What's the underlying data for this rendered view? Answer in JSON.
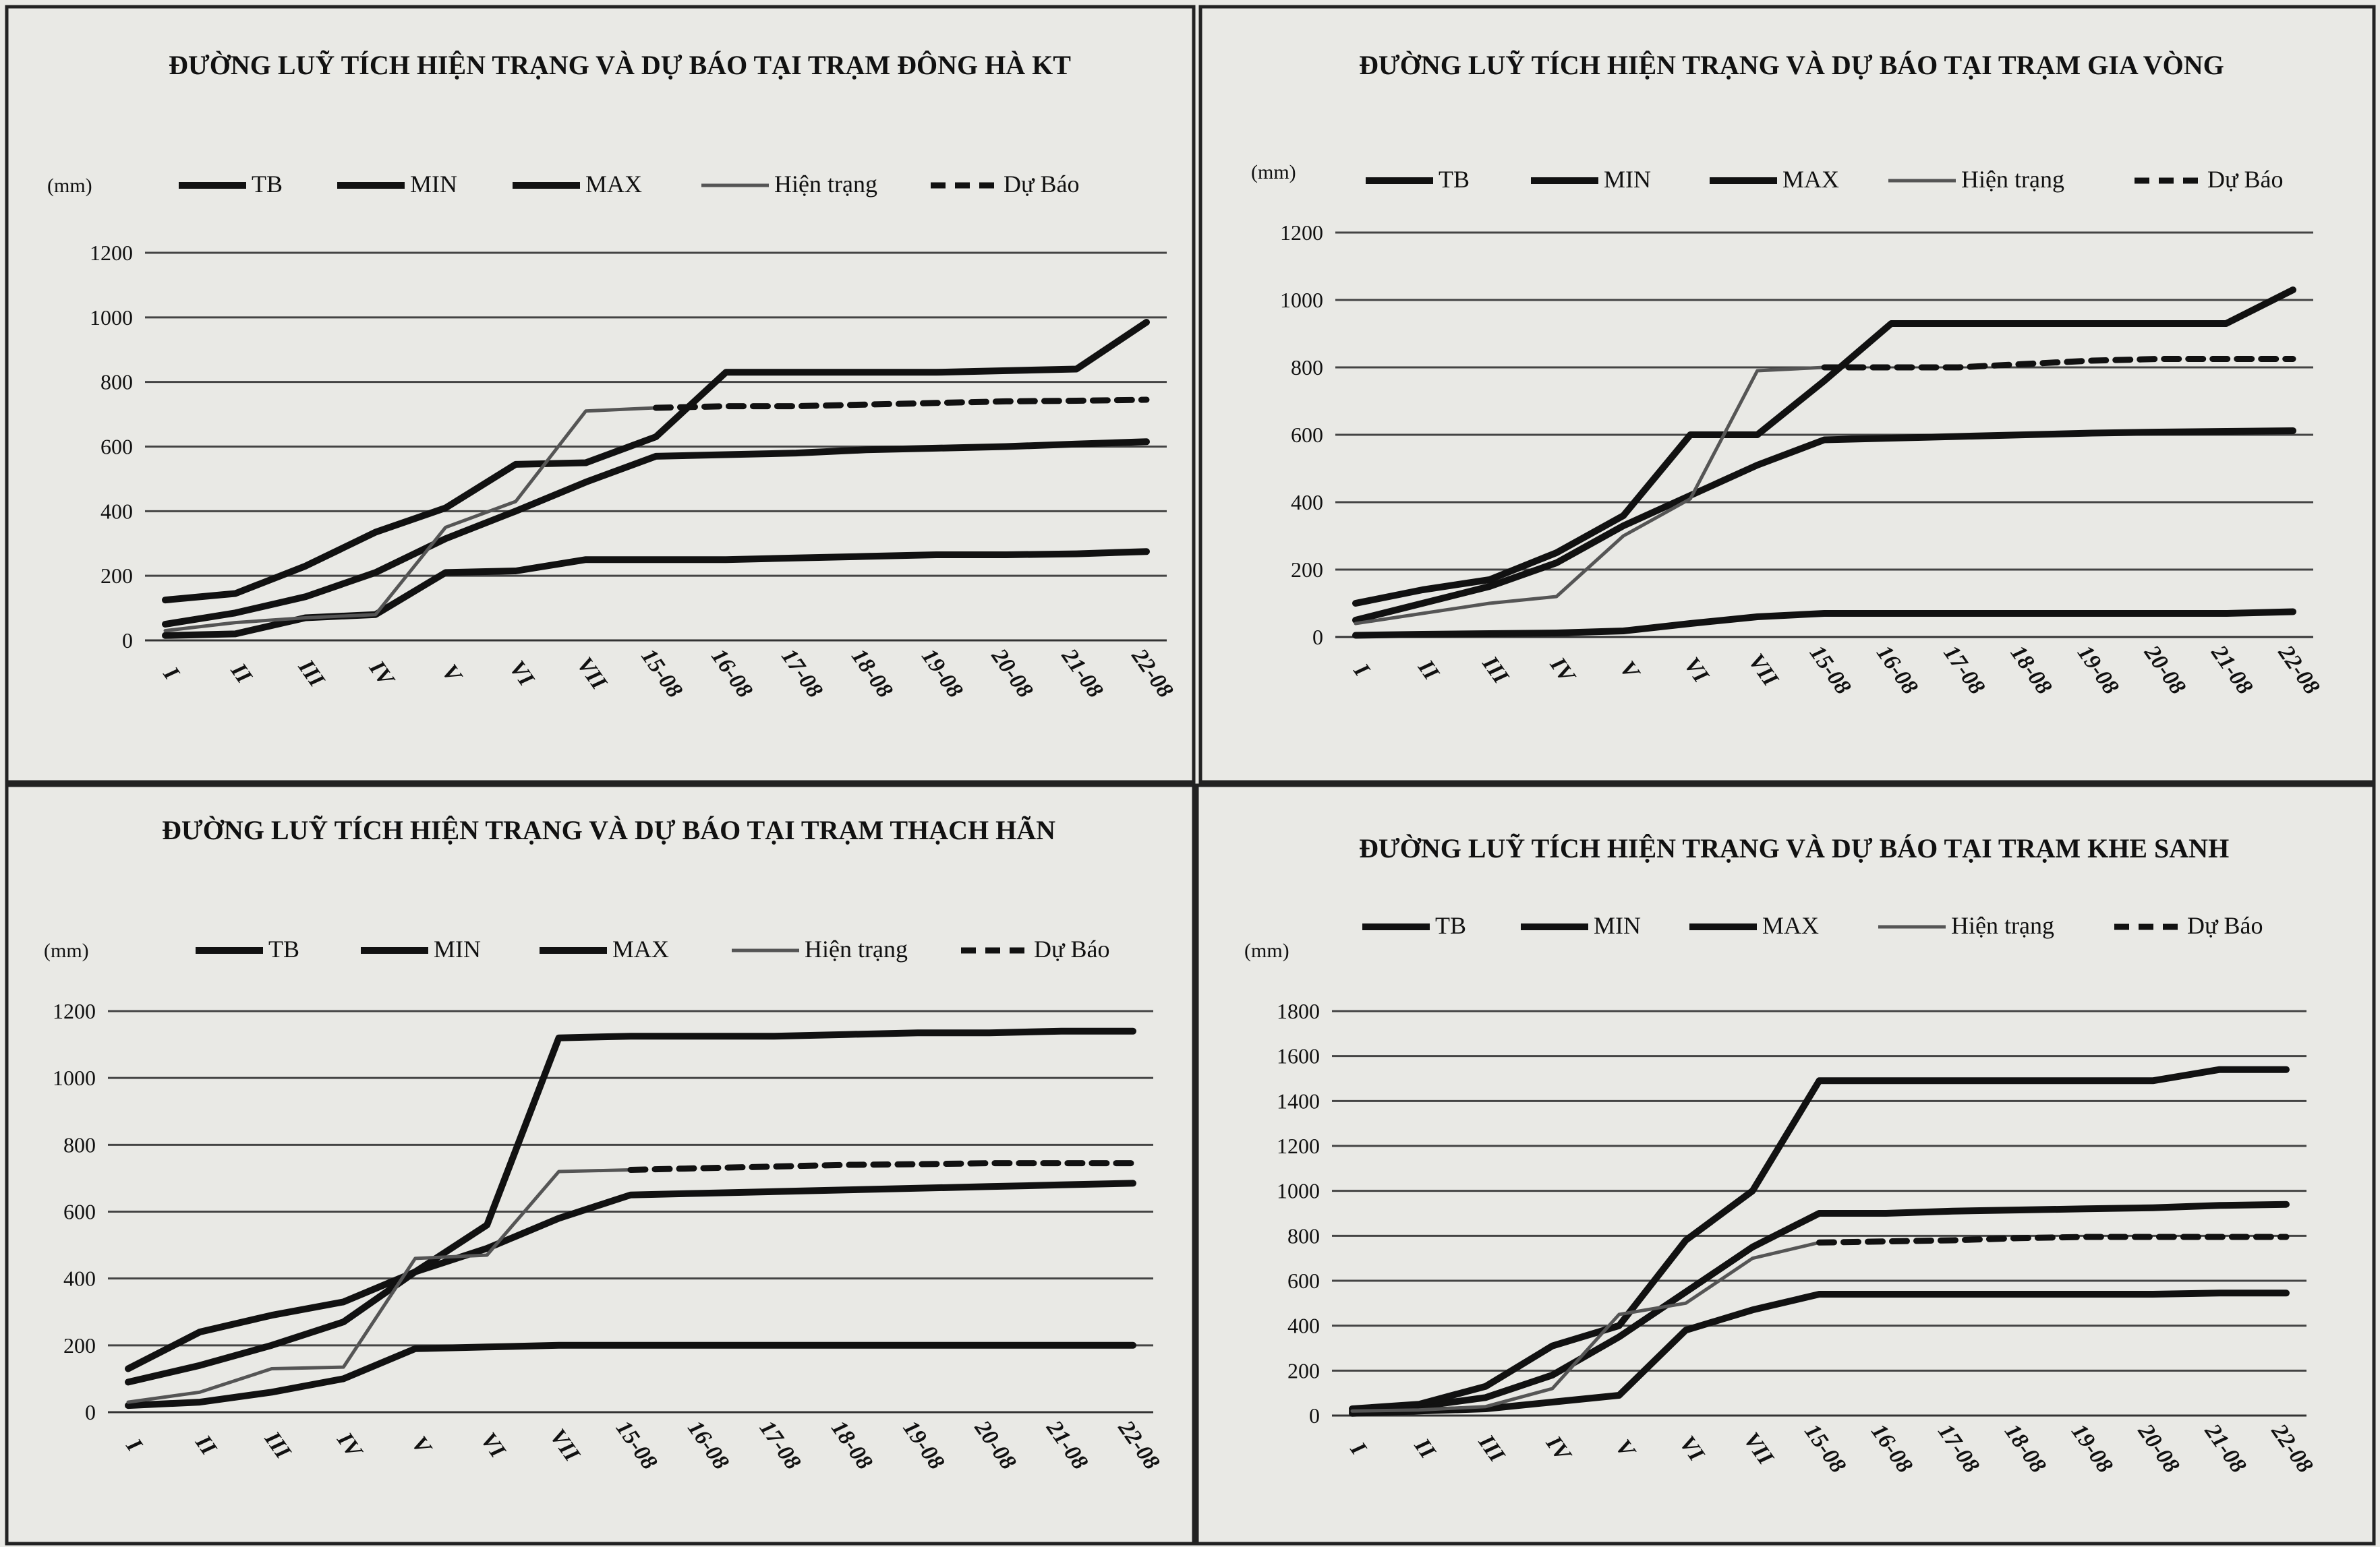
{
  "chart_data": [
    {
      "type": "line",
      "title": "ĐƯỜNG LUỸ TÍCH HIỆN TRẠNG VÀ DỰ BÁO TẠI TRẠM ĐÔNG HÀ KT",
      "ylabel": "(mm)",
      "ylim": [
        0,
        1200
      ],
      "yticks": [
        0,
        200,
        400,
        600,
        800,
        1000,
        1200
      ],
      "legend_position": "top",
      "grid": true,
      "categories": [
        "I",
        "II",
        "III",
        "IV",
        "V",
        "VI",
        "VII",
        "15-08",
        "16-08",
        "17-08",
        "18-08",
        "19-08",
        "20-08",
        "21-08",
        "22-08"
      ],
      "series": [
        {
          "name": "TB",
          "style": "thick",
          "values": [
            50,
            85,
            135,
            210,
            315,
            400,
            490,
            570,
            575,
            580,
            590,
            595,
            600,
            608,
            615
          ]
        },
        {
          "name": "MIN",
          "style": "thick",
          "values": [
            15,
            20,
            70,
            80,
            210,
            215,
            250,
            250,
            250,
            255,
            260,
            265,
            265,
            268,
            275
          ]
        },
        {
          "name": "MAX",
          "style": "thick",
          "values": [
            125,
            145,
            230,
            335,
            410,
            545,
            550,
            630,
            830,
            830,
            830,
            830,
            835,
            840,
            985
          ]
        },
        {
          "name": "Hiện trạng",
          "style": "thin",
          "values": [
            30,
            55,
            70,
            80,
            350,
            430,
            710,
            720,
            null,
            null,
            null,
            null,
            null,
            null,
            null
          ]
        },
        {
          "name": "Dự Báo",
          "style": "dashed",
          "values": [
            null,
            null,
            null,
            null,
            null,
            null,
            null,
            720,
            725,
            725,
            730,
            735,
            740,
            742,
            745
          ]
        }
      ]
    },
    {
      "type": "line",
      "title": "ĐƯỜNG LUỸ TÍCH HIỆN TRẠNG VÀ DỰ BÁO TẠI TRẠM GIA VÒNG",
      "ylabel": "(mm)",
      "ylim": [
        0,
        1200
      ],
      "yticks": [
        0,
        200,
        400,
        600,
        800,
        1000,
        1200
      ],
      "legend_position": "top",
      "grid": true,
      "categories": [
        "I",
        "II",
        "III",
        "IV",
        "V",
        "VI",
        "VII",
        "15-08",
        "16-08",
        "17-08",
        "18-08",
        "19-08",
        "20-08",
        "21-08",
        "22-08"
      ],
      "series": [
        {
          "name": "TB",
          "style": "thick",
          "values": [
            50,
            100,
            150,
            220,
            330,
            420,
            510,
            585,
            590,
            595,
            600,
            605,
            608,
            610,
            612
          ]
        },
        {
          "name": "MIN",
          "style": "thick",
          "values": [
            5,
            8,
            10,
            12,
            18,
            40,
            60,
            70,
            70,
            70,
            70,
            70,
            70,
            70,
            75
          ]
        },
        {
          "name": "MAX",
          "style": "thick",
          "values": [
            100,
            140,
            170,
            250,
            360,
            600,
            600,
            760,
            930,
            930,
            930,
            930,
            930,
            930,
            1030
          ]
        },
        {
          "name": "Hiện trạng",
          "style": "thin",
          "values": [
            40,
            70,
            100,
            120,
            300,
            410,
            790,
            800,
            null,
            null,
            null,
            null,
            null,
            null,
            null
          ]
        },
        {
          "name": "Dự Báo",
          "style": "dashed",
          "values": [
            null,
            null,
            null,
            null,
            null,
            null,
            null,
            800,
            800,
            800,
            810,
            820,
            825,
            825,
            825
          ]
        }
      ]
    },
    {
      "type": "line",
      "title": "ĐƯỜNG LUỸ TÍCH HIỆN TRẠNG VÀ DỰ BÁO TẠI TRẠM THẠCH HÃN",
      "ylabel": "(mm)",
      "ylim": [
        0,
        1200
      ],
      "yticks": [
        0,
        200,
        400,
        600,
        800,
        1000,
        1200
      ],
      "legend_position": "top",
      "grid": true,
      "categories": [
        "I",
        "II",
        "III",
        "IV",
        "V",
        "VI",
        "VII",
        "15-08",
        "16-08",
        "17-08",
        "18-08",
        "19-08",
        "20-08",
        "21-08",
        "22-08"
      ],
      "series": [
        {
          "name": "TB",
          "style": "thick",
          "values": [
            90,
            140,
            200,
            270,
            420,
            490,
            580,
            650,
            655,
            660,
            665,
            670,
            675,
            680,
            685
          ]
        },
        {
          "name": "MIN",
          "style": "thick",
          "values": [
            20,
            30,
            60,
            100,
            190,
            195,
            200,
            200,
            200,
            200,
            200,
            200,
            200,
            200,
            200
          ]
        },
        {
          "name": "MAX",
          "style": "thick",
          "values": [
            130,
            240,
            290,
            330,
            420,
            560,
            1120,
            1125,
            1125,
            1125,
            1130,
            1135,
            1135,
            1140,
            1140
          ]
        },
        {
          "name": "Hiện trạng",
          "style": "thin",
          "values": [
            30,
            60,
            130,
            135,
            460,
            470,
            720,
            725,
            null,
            null,
            null,
            null,
            null,
            null,
            null
          ]
        },
        {
          "name": "Dự Báo",
          "style": "dashed",
          "values": [
            null,
            null,
            null,
            null,
            null,
            null,
            null,
            725,
            730,
            735,
            740,
            742,
            745,
            745,
            745
          ]
        }
      ]
    },
    {
      "type": "line",
      "title": "ĐƯỜNG LUỸ TÍCH HIỆN TRẠNG VÀ DỰ BÁO TẠI TRẠM KHE SANH",
      "ylabel": "(mm)",
      "ylim": [
        0,
        1800
      ],
      "yticks": [
        0,
        200,
        400,
        600,
        800,
        1000,
        1200,
        1400,
        1600,
        1800
      ],
      "legend_position": "top",
      "grid": true,
      "categories": [
        "I",
        "II",
        "III",
        "IV",
        "V",
        "VI",
        "VII",
        "15-08",
        "16-08",
        "17-08",
        "18-08",
        "19-08",
        "20-08",
        "21-08",
        "22-08"
      ],
      "series": [
        {
          "name": "TB",
          "style": "thick",
          "values": [
            20,
            40,
            80,
            180,
            350,
            550,
            750,
            900,
            900,
            910,
            915,
            920,
            925,
            935,
            940
          ]
        },
        {
          "name": "MIN",
          "style": "thick",
          "values": [
            10,
            20,
            30,
            60,
            90,
            380,
            470,
            540,
            540,
            540,
            540,
            540,
            540,
            545,
            545
          ]
        },
        {
          "name": "MAX",
          "style": "thick",
          "values": [
            30,
            50,
            130,
            310,
            400,
            780,
            1000,
            1490,
            1490,
            1490,
            1490,
            1490,
            1490,
            1540,
            1540
          ]
        },
        {
          "name": "Hiện trạng",
          "style": "thin",
          "values": [
            20,
            25,
            40,
            120,
            450,
            500,
            700,
            770,
            null,
            null,
            null,
            null,
            null,
            null,
            null
          ]
        },
        {
          "name": "Dự Báo",
          "style": "dashed",
          "values": [
            null,
            null,
            null,
            null,
            null,
            null,
            null,
            770,
            775,
            780,
            790,
            795,
            795,
            795,
            795
          ]
        }
      ]
    }
  ]
}
